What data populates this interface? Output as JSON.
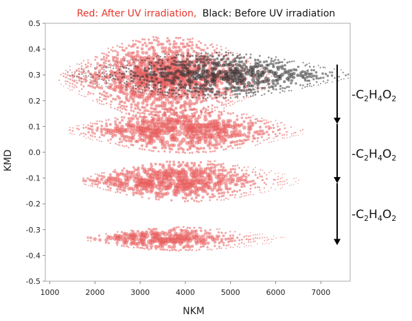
{
  "colors": {
    "after": "#e85a5a",
    "after_title": "#e8342a",
    "before": "#303030",
    "arrow": "#000000",
    "frame": "#aaaaaa"
  },
  "title": {
    "red_part": "Red: After UV irradiation,",
    "black_part": "Black: Before UV irradiation"
  },
  "chart_data": {
    "type": "scatter",
    "title": "Red: After UV irradiation, Black: Before UV irradiation",
    "xlabel": "NKM",
    "ylabel": "KMD",
    "xlim": [
      900,
      7650
    ],
    "ylim": [
      -0.5,
      0.5
    ],
    "xticks": [
      "1000",
      "2000",
      "3000",
      "4000",
      "5000",
      "6000",
      "7000"
    ],
    "yticks": [
      "0.5",
      "0.4",
      "0.3",
      "0.2",
      "0.1",
      "0.0",
      "-0.1",
      "-0.2",
      "-0.3",
      "-0.4",
      "-0.5"
    ],
    "grid": false,
    "series": [
      {
        "name": "Before UV irradiation",
        "color": "black",
        "bands": [
          {
            "x_min": 1400,
            "x_max": 7600,
            "y_center": 0.3,
            "y_spread": 0.09,
            "x_peak": 5000
          }
        ]
      },
      {
        "name": "After UV irradiation",
        "color": "red",
        "bands": [
          {
            "x_min": 1200,
            "x_max": 6000,
            "y_center": 0.29,
            "y_spread": 0.16,
            "x_peak": 3500
          },
          {
            "x_min": 1450,
            "x_max": 6600,
            "y_center": 0.085,
            "y_spread": 0.085,
            "x_peak": 3900
          },
          {
            "x_min": 1700,
            "x_max": 6500,
            "y_center": -0.11,
            "y_spread": 0.08,
            "x_peak": 3600
          },
          {
            "x_min": 1800,
            "x_max": 6200,
            "y_center": -0.335,
            "y_spread": 0.045,
            "x_peak": 3300
          }
        ]
      }
    ],
    "annotations": [
      {
        "text_parts": [
          "-C",
          "2",
          "H",
          "4",
          "O",
          "2"
        ],
        "from_y": 0.34,
        "to_y": 0.11
      },
      {
        "text_parts": [
          "-C",
          "2",
          "H",
          "4",
          "O",
          "2"
        ],
        "from_y": 0.11,
        "to_y": -0.12
      },
      {
        "text_parts": [
          "-C",
          "2",
          "H",
          "4",
          "O",
          "2"
        ],
        "from_y": -0.12,
        "to_y": -0.36
      }
    ]
  }
}
